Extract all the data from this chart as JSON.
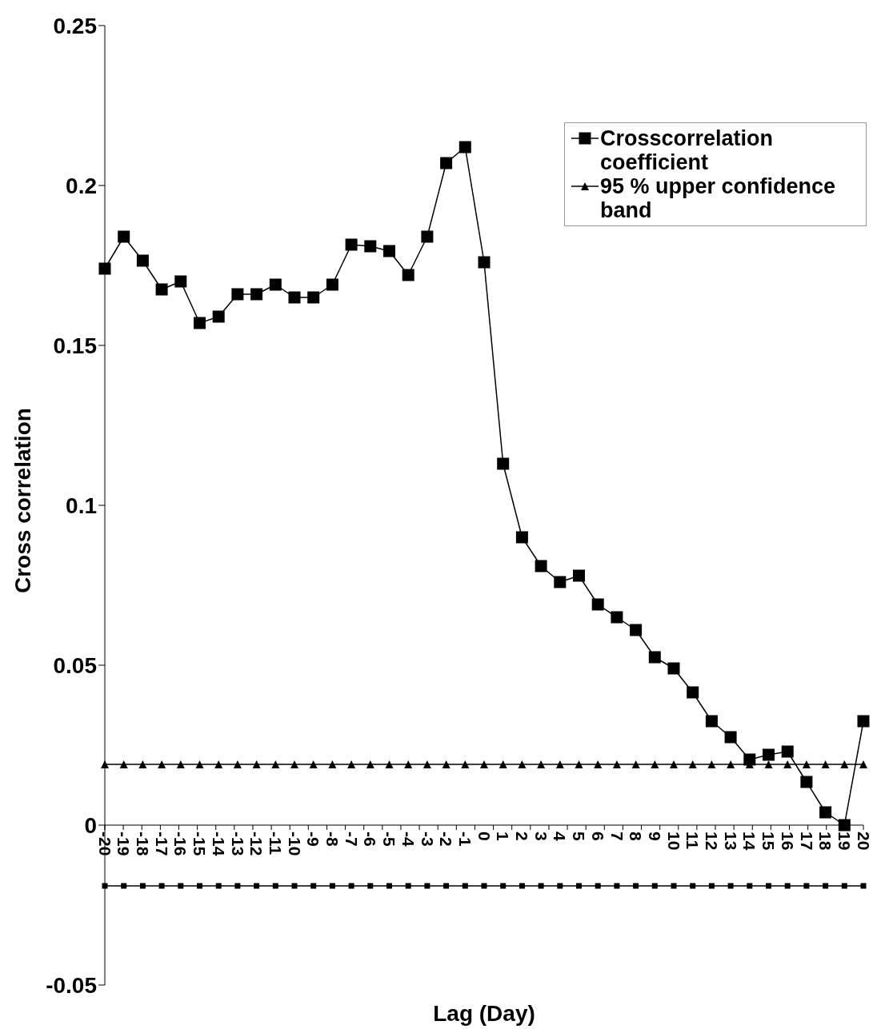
{
  "chart_data": {
    "type": "line",
    "xlabel": "Lag (Day)",
    "ylabel": "Cross correlation",
    "categories": [
      "-20",
      "-19",
      "-18",
      "-17",
      "-16",
      "-15",
      "-14",
      "-13",
      "-12",
      "-11",
      "-10",
      "-9",
      "-8",
      "-7",
      "-6",
      "-5",
      "-4",
      "-3",
      "-2",
      "-1",
      "0",
      "1",
      "2",
      "3",
      "4",
      "5",
      "6",
      "7",
      "8",
      "9",
      "10",
      "11",
      "12",
      "13",
      "14",
      "15",
      "16",
      "17",
      "18",
      "19",
      "20"
    ],
    "series": [
      {
        "name": "Crosscorrelation coefficient",
        "color": "#000000",
        "marker": "square",
        "values": [
          0.174,
          0.184,
          0.1765,
          0.1675,
          0.17,
          0.157,
          0.159,
          0.166,
          0.166,
          0.169,
          0.165,
          0.165,
          0.169,
          0.1815,
          0.181,
          0.1795,
          0.172,
          0.184,
          0.207,
          0.212,
          0.176,
          0.113,
          0.09,
          0.081,
          0.076,
          0.078,
          0.069,
          0.065,
          0.061,
          0.0525,
          0.049,
          0.0415,
          0.0325,
          0.0275,
          0.0205,
          0.022,
          0.023,
          0.0135,
          0.004,
          0.0,
          0.0325
        ]
      },
      {
        "name": "95 % upper confidence band",
        "color": "#000000",
        "marker": "triangle",
        "values": [
          0.019,
          0.019,
          0.019,
          0.019,
          0.019,
          0.019,
          0.019,
          0.019,
          0.019,
          0.019,
          0.019,
          0.019,
          0.019,
          0.019,
          0.019,
          0.019,
          0.019,
          0.019,
          0.019,
          0.019,
          0.019,
          0.019,
          0.019,
          0.019,
          0.019,
          0.019,
          0.019,
          0.019,
          0.019,
          0.019,
          0.019,
          0.019,
          0.019,
          0.019,
          0.019,
          0.019,
          0.019,
          0.019,
          0.019,
          0.019,
          0.019
        ]
      },
      {
        "color": "#000000",
        "marker": "square",
        "values": [
          -0.019,
          -0.019,
          -0.019,
          -0.019,
          -0.019,
          -0.019,
          -0.019,
          -0.019,
          -0.019,
          -0.019,
          -0.019,
          -0.019,
          -0.019,
          -0.019,
          -0.019,
          -0.019,
          -0.019,
          -0.019,
          -0.019,
          -0.019,
          -0.019,
          -0.019,
          -0.019,
          -0.019,
          -0.019,
          -0.019,
          -0.019,
          -0.019,
          -0.019,
          -0.019,
          -0.019,
          -0.019,
          -0.019,
          -0.019,
          -0.019,
          -0.019,
          -0.019,
          -0.019,
          -0.019,
          -0.019,
          -0.019
        ]
      }
    ],
    "ylim": [
      -0.05,
      0.25
    ],
    "yticks": [
      -0.05,
      0,
      0.05,
      0.1,
      0.15,
      0.2,
      0.25
    ],
    "grid": false,
    "legend": "top right",
    "line_style": "solid"
  }
}
